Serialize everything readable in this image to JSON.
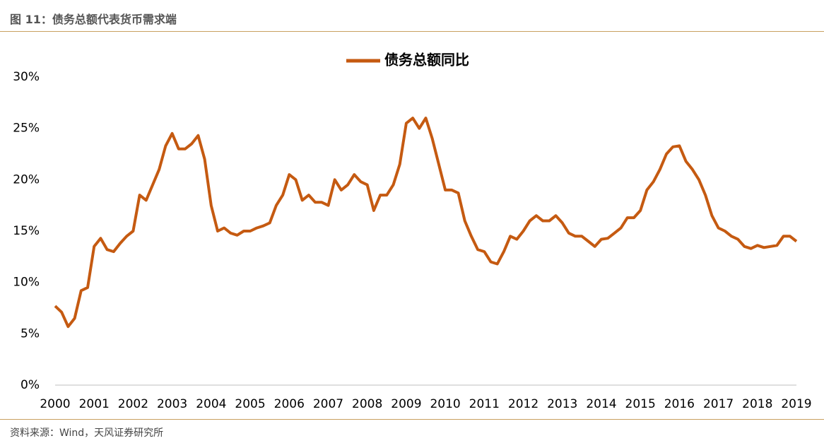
{
  "header": {
    "title": "图 11：债务总额代表货币需求端"
  },
  "footer": {
    "source": "资料来源：Wind，天风证券研究所"
  },
  "chart_data": {
    "type": "line",
    "categories": [
      "2000",
      null,
      null,
      null,
      null,
      null,
      "2001",
      null,
      null,
      null,
      null,
      null,
      "2002",
      null,
      null,
      null,
      null,
      null,
      "2003",
      null,
      null,
      null,
      null,
      null,
      "2004",
      null,
      null,
      null,
      null,
      null,
      "2005",
      null,
      null,
      null,
      null,
      null,
      "2006",
      null,
      null,
      null,
      null,
      null,
      "2007",
      null,
      null,
      null,
      null,
      null,
      "2008",
      null,
      null,
      null,
      null,
      null,
      "2009",
      null,
      null,
      null,
      null,
      null,
      "2010",
      null,
      null,
      null,
      null,
      null,
      "2011",
      null,
      null,
      null,
      null,
      null,
      "2012",
      null,
      null,
      null,
      null,
      null,
      "2013",
      null,
      null,
      null,
      null,
      null,
      "2014",
      null,
      null,
      null,
      null,
      null,
      "2015",
      null,
      null,
      null,
      null,
      null,
      "2016",
      null,
      null,
      null,
      null,
      null,
      "2017",
      null,
      null,
      null,
      null,
      null,
      "2018",
      null,
      null,
      null,
      null,
      null,
      "2019"
    ],
    "series": [
      {
        "name": "债务总额同比",
        "color": "#c55a11",
        "values": [
          7.7,
          7.1,
          5.7,
          6.5,
          9.2,
          9.5,
          13.5,
          14.3,
          13.2,
          13.0,
          13.8,
          14.5,
          15.0,
          18.5,
          18.0,
          19.5,
          21.0,
          23.3,
          24.5,
          23.0,
          23.0,
          23.5,
          24.3,
          22.0,
          17.5,
          15.0,
          15.3,
          14.8,
          14.6,
          15.0,
          15.0,
          15.3,
          15.5,
          15.8,
          17.5,
          18.5,
          20.5,
          20.0,
          18.0,
          18.5,
          17.8,
          17.8,
          17.5,
          20.0,
          19.0,
          19.5,
          20.5,
          19.8,
          19.5,
          17.0,
          18.5,
          18.5,
          19.5,
          21.5,
          25.5,
          26.0,
          25.0,
          26.0,
          24.0,
          21.5,
          19.0,
          19.0,
          18.7,
          16.0,
          14.5,
          13.2,
          13.0,
          12.0,
          11.8,
          13.0,
          14.5,
          14.2,
          15.0,
          16.0,
          16.5,
          16.0,
          16.0,
          16.5,
          15.8,
          14.8,
          14.5,
          14.5,
          14.0,
          13.5,
          14.2,
          14.3,
          14.8,
          15.3,
          16.3,
          16.3,
          17.0,
          19.0,
          19.8,
          21.0,
          22.5,
          23.2,
          23.3,
          21.8,
          21.0,
          20.0,
          18.5,
          16.5,
          15.3,
          15.0,
          14.5,
          14.2,
          13.5,
          13.3,
          13.6,
          13.4,
          13.5,
          13.6,
          14.5,
          14.5,
          14.0
        ]
      }
    ],
    "ylim": [
      0,
      30
    ],
    "yticks": [
      {
        "value": 0,
        "label": "0%"
      },
      {
        "value": 5,
        "label": "5%"
      },
      {
        "value": 10,
        "label": "10%"
      },
      {
        "value": 15,
        "label": "15%"
      },
      {
        "value": 20,
        "label": "20%"
      },
      {
        "value": 25,
        "label": "25%"
      },
      {
        "value": 30,
        "label": "30%"
      }
    ],
    "legend": "top"
  }
}
